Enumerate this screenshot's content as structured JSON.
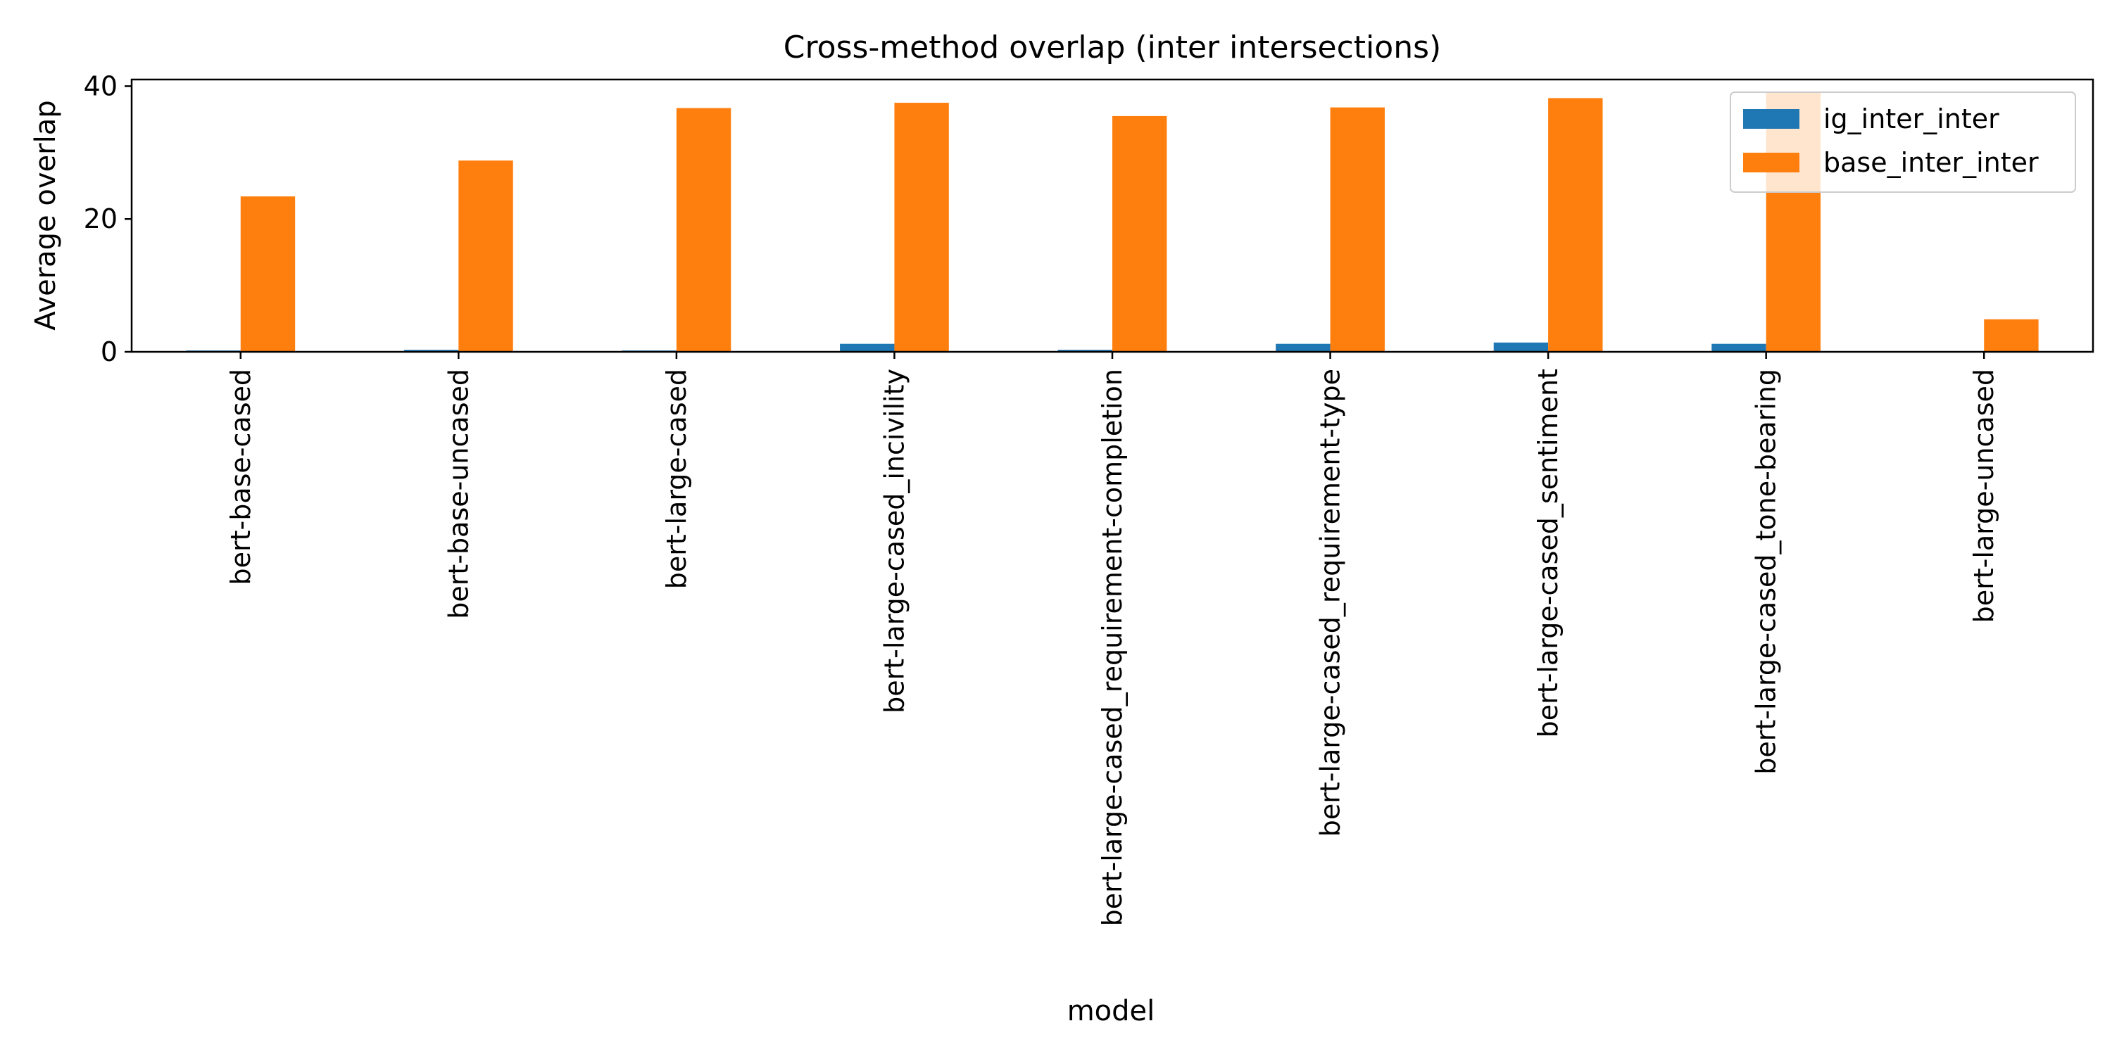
{
  "chart_data": {
    "type": "bar",
    "title": "Cross-method overlap (inter intersections)",
    "xlabel": "model",
    "ylabel": "Average overlap",
    "categories": [
      "bert-base-cased",
      "bert-base-uncased",
      "bert-large-cased",
      "bert-large-cased_incivility",
      "bert-large-cased_requirement-completion",
      "bert-large-cased_requirement-type",
      "bert-large-cased_sentiment",
      "bert-large-cased_tone-bearing",
      "bert-large-uncased"
    ],
    "series": [
      {
        "name": "ig_inter_inter",
        "color": "#1f77b4",
        "values": [
          0.2,
          0.3,
          0.2,
          1.2,
          0.3,
          1.2,
          1.4,
          1.2,
          0.0
        ]
      },
      {
        "name": "base_inter_inter",
        "color": "#ff7f0e",
        "values": [
          23.4,
          28.8,
          36.7,
          37.5,
          35.5,
          36.8,
          38.2,
          39.0,
          4.9
        ]
      }
    ],
    "ylim": [
      0,
      41
    ],
    "yticks": [
      0,
      20,
      40
    ],
    "grid": false,
    "legend_position": "top-right"
  }
}
